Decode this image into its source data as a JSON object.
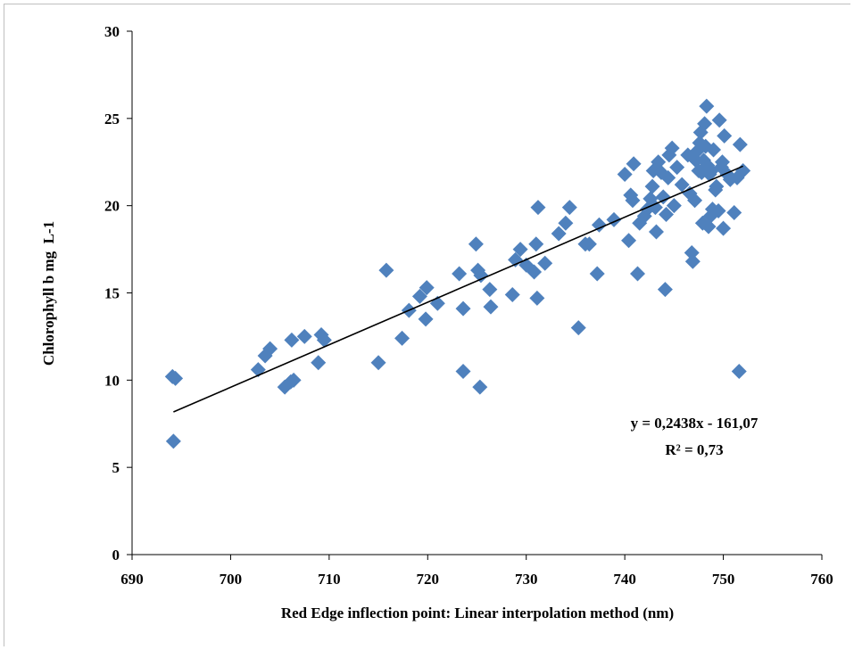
{
  "chart_data": {
    "type": "scatter",
    "title": "",
    "xlabel": "Red Edge inflection point: Linear interpolation method (nm)",
    "ylabel": "Chlorophyll b mg  L-1",
    "xlim": [
      690,
      760
    ],
    "ylim": [
      0,
      30
    ],
    "x_ticks": [
      "690",
      "700",
      "710",
      "720",
      "730",
      "740",
      "750",
      "760"
    ],
    "y_ticks": [
      "0",
      "5",
      "10",
      "15",
      "20",
      "25",
      "30"
    ],
    "grid": false,
    "legend": "none",
    "marker_color": "#4f81bd",
    "trendline": {
      "slope": 0.2438,
      "intercept": -161.07,
      "x_range": [
        694.2,
        752.0
      ],
      "equation": "y = 0,2438x - 161,07",
      "r2": "R² = 0,73"
    },
    "series": [
      {
        "points": [
          [
            694.1,
            10.2
          ],
          [
            694.4,
            10.1
          ],
          [
            694.2,
            6.5
          ],
          [
            702.8,
            10.6
          ],
          [
            703.5,
            11.4
          ],
          [
            704.0,
            11.8
          ],
          [
            705.5,
            9.6
          ],
          [
            706.1,
            9.9
          ],
          [
            706.2,
            12.3
          ],
          [
            706.4,
            10.0
          ],
          [
            707.5,
            12.5
          ],
          [
            708.9,
            11.0
          ],
          [
            709.2,
            12.6
          ],
          [
            709.5,
            12.3
          ],
          [
            715.0,
            11.0
          ],
          [
            715.8,
            16.3
          ],
          [
            717.4,
            12.4
          ],
          [
            718.1,
            14.0
          ],
          [
            719.2,
            14.8
          ],
          [
            719.8,
            13.5
          ],
          [
            719.9,
            15.3
          ],
          [
            721.0,
            14.4
          ],
          [
            723.2,
            16.1
          ],
          [
            723.6,
            14.1
          ],
          [
            723.6,
            10.5
          ],
          [
            724.9,
            17.8
          ],
          [
            725.1,
            16.3
          ],
          [
            725.4,
            16.0
          ],
          [
            725.3,
            9.6
          ],
          [
            726.3,
            15.2
          ],
          [
            726.4,
            14.2
          ],
          [
            728.6,
            14.9
          ],
          [
            728.9,
            16.9
          ],
          [
            729.4,
            17.5
          ],
          [
            730.0,
            16.6
          ],
          [
            730.8,
            16.2
          ],
          [
            731.0,
            17.8
          ],
          [
            731.1,
            14.7
          ],
          [
            731.2,
            19.9
          ],
          [
            731.9,
            16.7
          ],
          [
            733.3,
            18.4
          ],
          [
            734.0,
            19.0
          ],
          [
            734.4,
            19.9
          ],
          [
            735.3,
            13.0
          ],
          [
            736.0,
            17.8
          ],
          [
            736.4,
            17.8
          ],
          [
            737.2,
            16.1
          ],
          [
            737.4,
            18.9
          ],
          [
            738.9,
            19.2
          ],
          [
            740.0,
            21.8
          ],
          [
            740.4,
            18.0
          ],
          [
            740.6,
            20.6
          ],
          [
            740.8,
            20.3
          ],
          [
            740.9,
            22.4
          ],
          [
            741.3,
            16.1
          ],
          [
            741.5,
            19.0
          ],
          [
            742.0,
            19.4
          ],
          [
            742.3,
            19.8
          ],
          [
            742.6,
            20.4
          ],
          [
            742.8,
            21.1
          ],
          [
            742.9,
            22.0
          ],
          [
            743.1,
            19.9
          ],
          [
            743.2,
            18.5
          ],
          [
            743.4,
            22.5
          ],
          [
            743.7,
            21.9
          ],
          [
            743.9,
            20.5
          ],
          [
            744.1,
            15.2
          ],
          [
            744.2,
            19.5
          ],
          [
            744.4,
            21.6
          ],
          [
            744.5,
            22.9
          ],
          [
            744.8,
            23.3
          ],
          [
            745.0,
            20.0
          ],
          [
            745.3,
            22.2
          ],
          [
            745.8,
            21.2
          ],
          [
            746.4,
            22.9
          ],
          [
            746.6,
            20.7
          ],
          [
            746.8,
            17.3
          ],
          [
            746.9,
            16.8
          ],
          [
            747.1,
            20.3
          ],
          [
            747.2,
            22.6
          ],
          [
            747.3,
            23.1
          ],
          [
            747.5,
            22.0
          ],
          [
            747.6,
            23.6
          ],
          [
            747.7,
            24.2
          ],
          [
            747.8,
            21.9
          ],
          [
            747.9,
            19.0
          ],
          [
            748.0,
            22.6
          ],
          [
            748.1,
            24.7
          ],
          [
            748.2,
            23.4
          ],
          [
            748.3,
            25.7
          ],
          [
            748.4,
            22.3
          ],
          [
            748.5,
            18.8
          ],
          [
            748.6,
            21.8
          ],
          [
            748.7,
            19.4
          ],
          [
            748.8,
            22.0
          ],
          [
            748.9,
            19.8
          ],
          [
            749.0,
            23.2
          ],
          [
            749.2,
            20.9
          ],
          [
            749.3,
            21.1
          ],
          [
            749.5,
            19.7
          ],
          [
            749.6,
            24.9
          ],
          [
            749.8,
            22.2
          ],
          [
            749.9,
            22.5
          ],
          [
            750.0,
            18.7
          ],
          [
            750.1,
            24.0
          ],
          [
            750.4,
            21.8
          ],
          [
            750.7,
            21.5
          ],
          [
            751.1,
            19.6
          ],
          [
            751.4,
            21.6
          ],
          [
            751.6,
            10.5
          ],
          [
            751.7,
            23.5
          ],
          [
            752.0,
            22.0
          ]
        ]
      }
    ]
  }
}
